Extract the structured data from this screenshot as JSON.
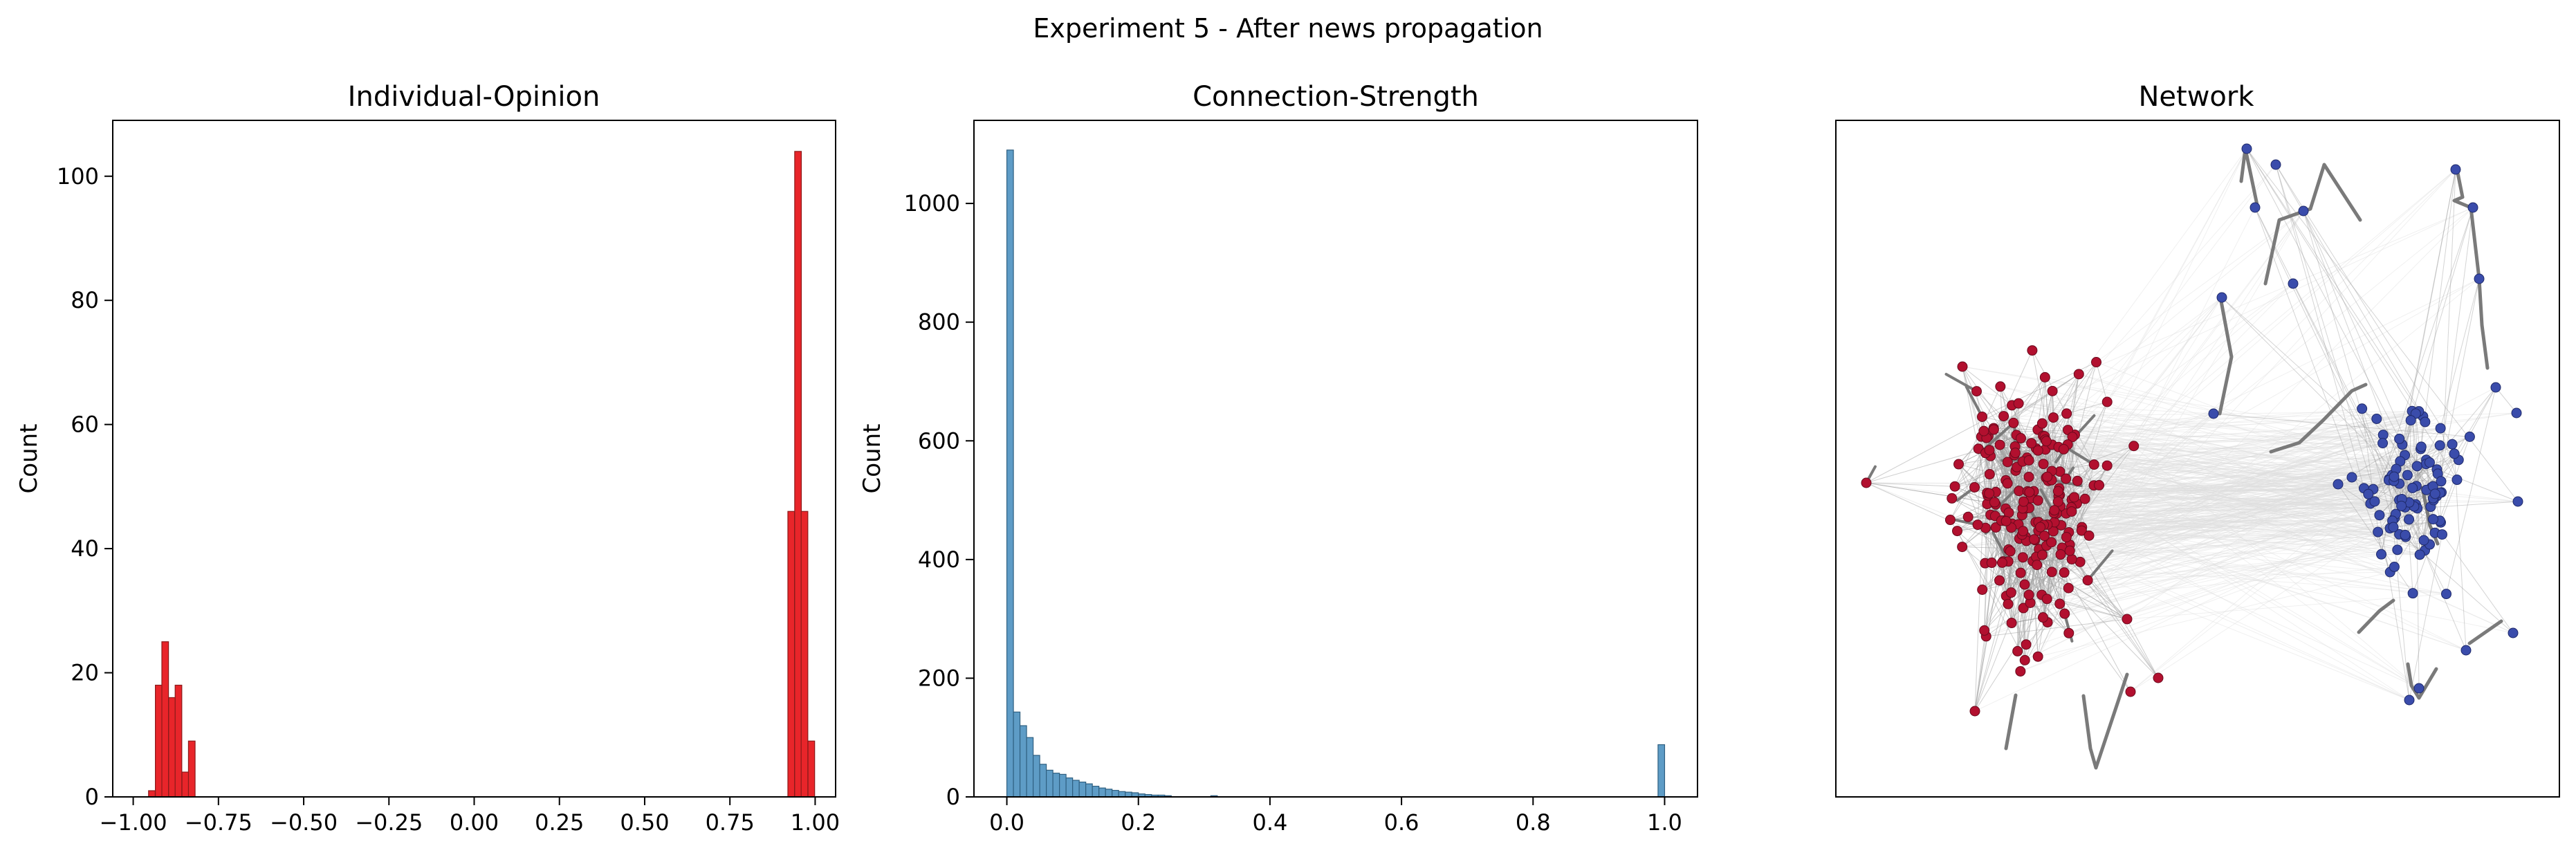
{
  "figure": {
    "suptitle": "Experiment 5 - After news propagation"
  },
  "chart_data": [
    {
      "type": "bar",
      "title": "Individual-Opinion",
      "xlabel": "",
      "ylabel": "Count",
      "xlim": [
        -1.06,
        1.06
      ],
      "ylim": [
        0,
        109
      ],
      "xticks": [
        -1.0,
        -0.75,
        -0.5,
        -0.25,
        0.0,
        0.25,
        0.5,
        0.75,
        1.0
      ],
      "xtick_labels": [
        "−1.00",
        "−0.75",
        "−0.50",
        "−0.25",
        "0.00",
        "0.25",
        "0.50",
        "0.75",
        "1.00"
      ],
      "yticks": [
        0,
        20,
        40,
        60,
        80,
        100
      ],
      "ytick_labels": [
        "0",
        "20",
        "40",
        "60",
        "80",
        "100"
      ],
      "bar_color": "#e8252a",
      "edge_color": "#8b1a1a",
      "bin_width": 0.0195,
      "bins_x": [
        -0.955,
        -0.935,
        -0.916,
        -0.896,
        -0.877,
        -0.857,
        -0.838,
        0.92,
        0.94,
        0.959,
        0.979
      ],
      "values": [
        1,
        18,
        25,
        16,
        18,
        4,
        9,
        46,
        104,
        46,
        9
      ]
    },
    {
      "type": "bar",
      "title": "Connection-Strength",
      "xlabel": "",
      "ylabel": "Count",
      "xlim": [
        -0.05,
        1.05
      ],
      "ylim": [
        0,
        1140
      ],
      "xticks": [
        0.0,
        0.2,
        0.4,
        0.6,
        0.8,
        1.0
      ],
      "xtick_labels": [
        "0.0",
        "0.2",
        "0.4",
        "0.6",
        "0.8",
        "1.0"
      ],
      "yticks": [
        0,
        200,
        400,
        600,
        800,
        1000
      ],
      "ytick_labels": [
        "0",
        "200",
        "400",
        "600",
        "800",
        "1000"
      ],
      "bar_color": "#5e9cc6",
      "edge_color": "#2f5f80",
      "bin_width": 0.01,
      "bins_x": [
        0.0,
        0.01,
        0.02,
        0.03,
        0.04,
        0.05,
        0.06,
        0.07,
        0.08,
        0.09,
        0.1,
        0.11,
        0.12,
        0.13,
        0.14,
        0.15,
        0.16,
        0.17,
        0.18,
        0.19,
        0.2,
        0.21,
        0.22,
        0.23,
        0.24,
        0.31,
        0.99
      ],
      "values": [
        1090,
        143,
        120,
        100,
        70,
        55,
        45,
        40,
        38,
        32,
        28,
        25,
        22,
        18,
        15,
        13,
        11,
        9,
        8,
        7,
        5,
        4,
        3,
        3,
        2,
        2,
        88
      ]
    }
  ],
  "network": {
    "title": "Network",
    "node_color_left": "#b2102f",
    "node_color_right": "#3a4cab",
    "edge_color": "#7a7a7a",
    "thin_edge_color": "#a0a0a0"
  }
}
